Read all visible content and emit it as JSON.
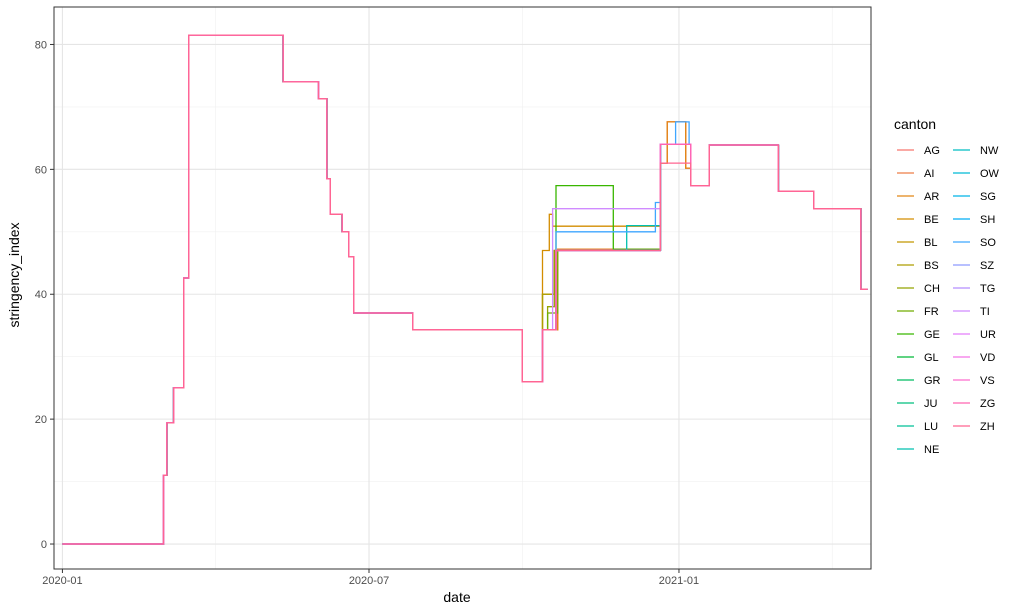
{
  "chart_data": {
    "type": "line",
    "title": "",
    "xlabel": "date",
    "ylabel": "stringency_index",
    "xlim": [
      "2019-12-27",
      "2021-04-25"
    ],
    "ylim": [
      -4,
      86
    ],
    "x_ticks": [
      {
        "date": "2020-01-01",
        "label": "2020-01"
      },
      {
        "date": "2020-07-01",
        "label": "2020-07"
      },
      {
        "date": "2021-01-01",
        "label": "2021-01"
      }
    ],
    "y_ticks": [
      0,
      20,
      40,
      60,
      80
    ],
    "grid": true,
    "legend": {
      "title": "canton",
      "placement": "right",
      "columns": 2
    },
    "series": [
      {
        "name": "AG",
        "color": "#F8766D",
        "overrides": [
          [
            "2020-12-25",
            67.6
          ],
          [
            "2021-01-05",
            60.2
          ]
        ]
      },
      {
        "name": "AI",
        "color": "#EE7D47",
        "overrides": [
          [
            "2020-12-25",
            67.6
          ],
          [
            "2021-01-05",
            60.2
          ]
        ]
      },
      {
        "name": "AR",
        "color": "#E28616",
        "overrides": [
          [
            "2020-12-25",
            67.6
          ],
          [
            "2021-01-05",
            60.2
          ]
        ]
      },
      {
        "name": "BE",
        "color": "#D38D00",
        "overrides": [
          [
            "2020-10-12",
            47
          ],
          [
            "2020-10-16",
            52.8
          ],
          [
            "2020-10-18",
            50.9
          ],
          [
            "2020-12-21",
            64
          ],
          [
            "2021-01-08",
            57.4
          ]
        ]
      },
      {
        "name": "BL",
        "color": "#C29600",
        "overrides": [
          [
            "2020-10-12",
            40
          ],
          [
            "2020-10-19",
            47
          ],
          [
            "2020-12-21",
            64
          ],
          [
            "2021-01-08",
            57.4
          ]
        ]
      },
      {
        "name": "BS",
        "color": "#AE9E00",
        "overrides": [
          [
            "2020-10-12",
            40
          ],
          [
            "2020-10-19",
            47
          ],
          [
            "2020-12-21",
            64
          ],
          [
            "2021-01-08",
            57.4
          ]
        ]
      },
      {
        "name": "CH",
        "color": "#95A500",
        "overrides": [
          [
            "2020-10-15",
            38
          ],
          [
            "2020-10-19",
            47
          ],
          [
            "2020-12-21",
            64
          ],
          [
            "2021-01-08",
            57.4
          ]
        ]
      },
      {
        "name": "FR",
        "color": "#72AC00",
        "overrides": [
          [
            "2020-10-15",
            37
          ],
          [
            "2020-10-21",
            47
          ],
          [
            "2020-12-21",
            64
          ],
          [
            "2021-01-08",
            57.4
          ]
        ]
      },
      {
        "name": "GE",
        "color": "#39B600",
        "overrides": [
          [
            "2020-10-20",
            57.4
          ],
          [
            "2020-11-23",
            47.2
          ],
          [
            "2020-12-21",
            64
          ],
          [
            "2021-01-08",
            57.4
          ]
        ]
      },
      {
        "name": "GL",
        "color": "#00B938",
        "overrides": [
          [
            "2020-10-20",
            47
          ],
          [
            "2020-12-21",
            64
          ],
          [
            "2021-01-08",
            57.4
          ]
        ]
      },
      {
        "name": "GR",
        "color": "#00BC61",
        "overrides": [
          [
            "2020-10-20",
            47
          ],
          [
            "2020-12-21",
            64
          ],
          [
            "2021-01-08",
            57.4
          ]
        ]
      },
      {
        "name": "JU",
        "color": "#00BF7D",
        "overrides": [
          [
            "2020-10-20",
            47
          ],
          [
            "2020-12-21",
            64
          ],
          [
            "2021-01-08",
            57.4
          ]
        ]
      },
      {
        "name": "LU",
        "color": "#00C097",
        "overrides": [
          [
            "2020-10-20",
            47
          ],
          [
            "2020-12-21",
            64
          ],
          [
            "2021-01-08",
            57.4
          ]
        ]
      },
      {
        "name": "NE",
        "color": "#00C0AF",
        "overrides": [
          [
            "2020-10-20",
            47
          ],
          [
            "2020-12-01",
            51
          ],
          [
            "2020-12-21",
            64
          ],
          [
            "2021-01-08",
            57.4
          ]
        ]
      },
      {
        "name": "NW",
        "color": "#00BDC2",
        "overrides": [
          [
            "2020-10-20",
            47
          ],
          [
            "2020-12-21",
            64
          ],
          [
            "2021-01-08",
            57.4
          ]
        ]
      },
      {
        "name": "OW",
        "color": "#00BAD5",
        "overrides": [
          [
            "2020-10-20",
            47
          ],
          [
            "2020-12-21",
            64
          ],
          [
            "2021-01-08",
            57.4
          ]
        ]
      },
      {
        "name": "SG",
        "color": "#00B5E6",
        "overrides": [
          [
            "2020-10-20",
            47
          ],
          [
            "2020-12-21",
            64
          ],
          [
            "2021-01-08",
            57.4
          ]
        ]
      },
      {
        "name": "SH",
        "color": "#00ADF5",
        "overrides": [
          [
            "2020-10-20",
            47
          ],
          [
            "2020-12-21",
            64
          ],
          [
            "2021-01-08",
            57.4
          ]
        ]
      },
      {
        "name": "SO",
        "color": "#3FA6FF",
        "overrides": [
          [
            "2020-10-20",
            50
          ],
          [
            "2020-12-18",
            54.7
          ],
          [
            "2020-12-21",
            64
          ],
          [
            "2020-12-30",
            67.6
          ],
          [
            "2021-01-07",
            64
          ]
        ]
      },
      {
        "name": "SZ",
        "color": "#8E9AFF",
        "overrides": [
          [
            "2020-10-20",
            47
          ],
          [
            "2020-12-21",
            64
          ],
          [
            "2021-01-08",
            57.4
          ]
        ]
      },
      {
        "name": "TG",
        "color": "#B48EFF",
        "overrides": [
          [
            "2020-10-20",
            47
          ],
          [
            "2020-12-21",
            64
          ],
          [
            "2021-01-08",
            57.4
          ]
        ]
      },
      {
        "name": "TI",
        "color": "#D08BFF",
        "overrides": [
          [
            "2020-10-18",
            53.7
          ],
          [
            "2020-12-21",
            64
          ],
          [
            "2021-01-08",
            57.4
          ]
        ]
      },
      {
        "name": "UR",
        "color": "#E47EFB",
        "overrides": [
          [
            "2020-10-20",
            47
          ],
          [
            "2020-12-21",
            64
          ],
          [
            "2021-01-08",
            57.4
          ]
        ]
      },
      {
        "name": "VD",
        "color": "#F475E6",
        "overrides": [
          [
            "2020-10-20",
            47
          ],
          [
            "2020-12-21",
            64
          ],
          [
            "2021-01-08",
            57.4
          ]
        ]
      },
      {
        "name": "VS",
        "color": "#FD6CCD",
        "overrides": [
          [
            "2020-10-20",
            47
          ],
          [
            "2020-12-21",
            64
          ],
          [
            "2021-01-08",
            57.4
          ]
        ]
      },
      {
        "name": "ZG",
        "color": "#FF64B1",
        "overrides": [
          [
            "2020-10-20",
            47
          ],
          [
            "2020-12-21",
            64
          ],
          [
            "2021-01-08",
            57.4
          ]
        ]
      },
      {
        "name": "ZH",
        "color": "#FF6591",
        "overrides": [
          [
            "2020-10-20",
            47
          ],
          [
            "2020-12-21",
            61
          ],
          [
            "2021-01-08",
            57.4
          ]
        ]
      }
    ],
    "base_steps": [
      [
        "2020-01-01",
        0
      ],
      [
        "2020-02-28",
        0
      ],
      [
        "2020-03-01",
        11
      ],
      [
        "2020-03-03",
        19.4
      ],
      [
        "2020-03-07",
        25
      ],
      [
        "2020-03-13",
        42.6
      ],
      [
        "2020-03-16",
        81.5
      ],
      [
        "2020-05-11",
        74
      ],
      [
        "2020-06-01",
        71.3
      ],
      [
        "2020-06-06",
        58.5
      ],
      [
        "2020-06-08",
        52.8
      ],
      [
        "2020-06-15",
        50
      ],
      [
        "2020-06-19",
        46
      ],
      [
        "2020-06-22",
        37
      ],
      [
        "2020-07-27",
        34.3
      ],
      [
        "2020-09-30",
        26
      ],
      [
        "2020-10-12",
        34.3
      ],
      [
        "2020-10-21",
        47.2
      ],
      [
        "2020-12-21",
        61
      ],
      [
        "2021-01-08",
        57.4
      ],
      [
        "2021-01-19",
        63.9
      ],
      [
        "2021-03-01",
        56.5
      ],
      [
        "2021-03-22",
        53.7
      ],
      [
        "2021-04-19",
        40.8
      ],
      [
        "2021-04-23",
        40.8
      ]
    ]
  }
}
